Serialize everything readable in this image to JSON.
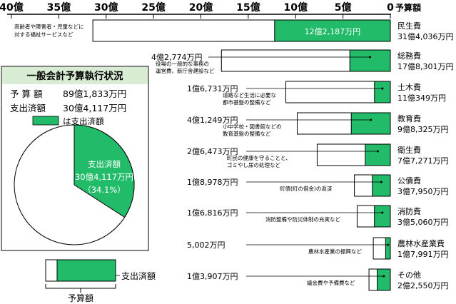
{
  "chart_data": {
    "type": "bar",
    "title": "一般会計予算執行状況",
    "axis_unit": "予算額",
    "x_ticks": [
      "40億",
      "35億",
      "30億",
      "25億",
      "20億",
      "15億",
      "10億",
      "5億",
      "0"
    ],
    "x_tick_values": [
      40,
      35,
      30,
      25,
      20,
      15,
      10,
      5,
      0
    ],
    "xlim": [
      0,
      40
    ],
    "unit": "億円",
    "categories": [
      {
        "name": "民生費",
        "budget_label": "31億4,036万円",
        "budget": 31.4036,
        "spent": 12.2187,
        "amount_label": "12億2,187万円",
        "desc": [
          "高齢者や障害者・児童などに",
          "対する福祉サービスなど"
        ]
      },
      {
        "name": "総務費",
        "budget_label": "17億8,301万円",
        "budget": 17.8301,
        "spent": 4.2774,
        "amount_label": "4億2,774万円",
        "desc": [
          "役場の一般的な事務の",
          "運営費、新庁舎建設など"
        ]
      },
      {
        "name": "土木費",
        "budget_label": "11億349万円",
        "budget": 11.0349,
        "spent": 1.6731,
        "amount_label": "1億6,731万円",
        "desc": [
          "道路など生活に必要な",
          "都市基盤の整備など"
        ]
      },
      {
        "name": "教育費",
        "budget_label": "9億8,325万円",
        "budget": 9.8325,
        "spent": 4.1249,
        "amount_label": "4億1,249万円",
        "desc": [
          "小中学校・図書館などの",
          "教育基盤の整備など"
        ]
      },
      {
        "name": "衛生費",
        "budget_label": "7億7,271万円",
        "budget": 7.7271,
        "spent": 2.6473,
        "amount_label": "2億6,473万円",
        "desc": [
          "町民の健康を守ることと、",
          "ゴミやし尿の処理など"
        ]
      },
      {
        "name": "公債費",
        "budget_label": "3億7,950万円",
        "budget": 3.795,
        "spent": 1.8978,
        "amount_label": "1億8,978万円",
        "desc": [
          "町債(町の借金)の返済"
        ]
      },
      {
        "name": "消防費",
        "budget_label": "3億5,060万円",
        "budget": 3.506,
        "spent": 1.6816,
        "amount_label": "1億6,816万円",
        "desc": [
          "消防整備や防災体制の充実など"
        ]
      },
      {
        "name": "農林水産業費",
        "budget_label": "1億7,991万円",
        "budget": 1.7991,
        "spent": 0.5002,
        "amount_label": "5,002万円",
        "desc": [
          "農林水産業の振興など"
        ]
      },
      {
        "name": "その他",
        "budget_label": "2億2,550万円",
        "budget": 2.255,
        "spent": 1.3907,
        "amount_label": "1億3,907万円",
        "desc": [
          "議会費や予備費など"
        ]
      }
    ],
    "summary": {
      "budget_label": "予 算 額",
      "budget_value": "89億1,833万円",
      "spent_label": "支出済額",
      "spent_value": "30億4,117万円",
      "legend_text": "は支出済額",
      "pie_label_1": "支出済額",
      "pie_label_2": "30億4,117万円",
      "pie_label_3": "（34.1%）",
      "spent_fraction": 0.341
    },
    "key": {
      "spent_label": "支出済額",
      "budget_label": "予算額"
    },
    "colors": {
      "spent": "#22bb6a",
      "budget": "#ffffff",
      "title_band": "#d7ecd3"
    }
  }
}
